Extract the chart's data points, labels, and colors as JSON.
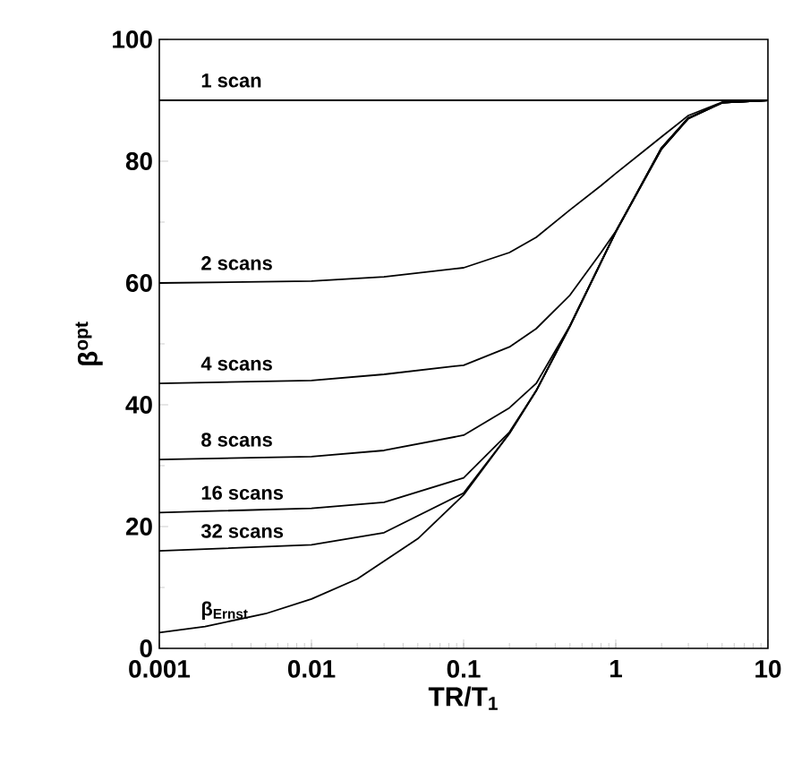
{
  "chart_data": {
    "type": "line",
    "xlabel": "TR/T$_{1}$",
    "ylabel": "β$^{opt}$",
    "log": "x",
    "xlim": [
      0.001,
      10
    ],
    "ylim": [
      0,
      100
    ],
    "xticks": [
      0.001,
      0.01,
      0.1,
      1,
      10
    ],
    "yticks": [
      0,
      20,
      40,
      60,
      80,
      100
    ],
    "series": [
      {
        "name": "1 scan",
        "color": "#000000",
        "x": [
          0.001,
          10
        ],
        "values": [
          90,
          90
        ]
      },
      {
        "name": "2 scans",
        "color": "#000000",
        "x": [
          0.001,
          0.01,
          0.03,
          0.1,
          0.2,
          0.3,
          0.5,
          0.8,
          1,
          1.5,
          2,
          3,
          5,
          10
        ],
        "values": [
          60,
          60.3,
          61,
          62.5,
          65,
          67.5,
          72,
          76,
          78,
          81.5,
          84,
          87.5,
          89.7,
          90
        ]
      },
      {
        "name": "4 scans",
        "color": "#000000",
        "x": [
          0.001,
          0.01,
          0.03,
          0.1,
          0.2,
          0.3,
          0.5,
          0.8,
          1,
          2,
          3,
          5,
          10
        ],
        "values": [
          43.5,
          44,
          45,
          46.5,
          49.5,
          52.5,
          58,
          65,
          68.5,
          82,
          87,
          89.6,
          90
        ]
      },
      {
        "name": "8 scans",
        "color": "#000000",
        "x": [
          0.001,
          0.01,
          0.03,
          0.1,
          0.2,
          0.3,
          0.5,
          1,
          2,
          3,
          5,
          10
        ],
        "values": [
          31,
          31.5,
          32.5,
          35,
          39.5,
          43.5,
          53,
          68.4,
          82,
          87,
          89.6,
          90
        ]
      },
      {
        "name": "16 scans",
        "color": "#000000",
        "x": [
          0.001,
          0.01,
          0.03,
          0.1,
          0.2,
          0.3,
          0.5,
          1,
          2,
          3,
          5,
          10
        ],
        "values": [
          22.3,
          23,
          24,
          28,
          35.5,
          42.3,
          53,
          68.4,
          82.2,
          87.1,
          89.6,
          90
        ]
      },
      {
        "name": "32 scans",
        "color": "#000000",
        "x": [
          0.001,
          0.01,
          0.03,
          0.1,
          0.2,
          0.3,
          0.5,
          1,
          2,
          3,
          5,
          10
        ],
        "values": [
          16,
          17,
          19,
          25.5,
          35.3,
          42.3,
          52.9,
          68.4,
          82.2,
          87.1,
          89.6,
          90
        ]
      },
      {
        "name": "β$_{Ernst}$",
        "color": "#000000",
        "x": [
          0.001,
          0.002,
          0.005,
          0.01,
          0.02,
          0.05,
          0.1,
          0.2,
          0.3,
          0.5,
          1,
          2,
          3,
          5,
          10
        ],
        "values": [
          2.6,
          3.6,
          5.7,
          8.1,
          11.4,
          18,
          25.2,
          35.3,
          42.3,
          52.9,
          68.4,
          82.2,
          87.1,
          89.6,
          90
        ]
      }
    ]
  }
}
